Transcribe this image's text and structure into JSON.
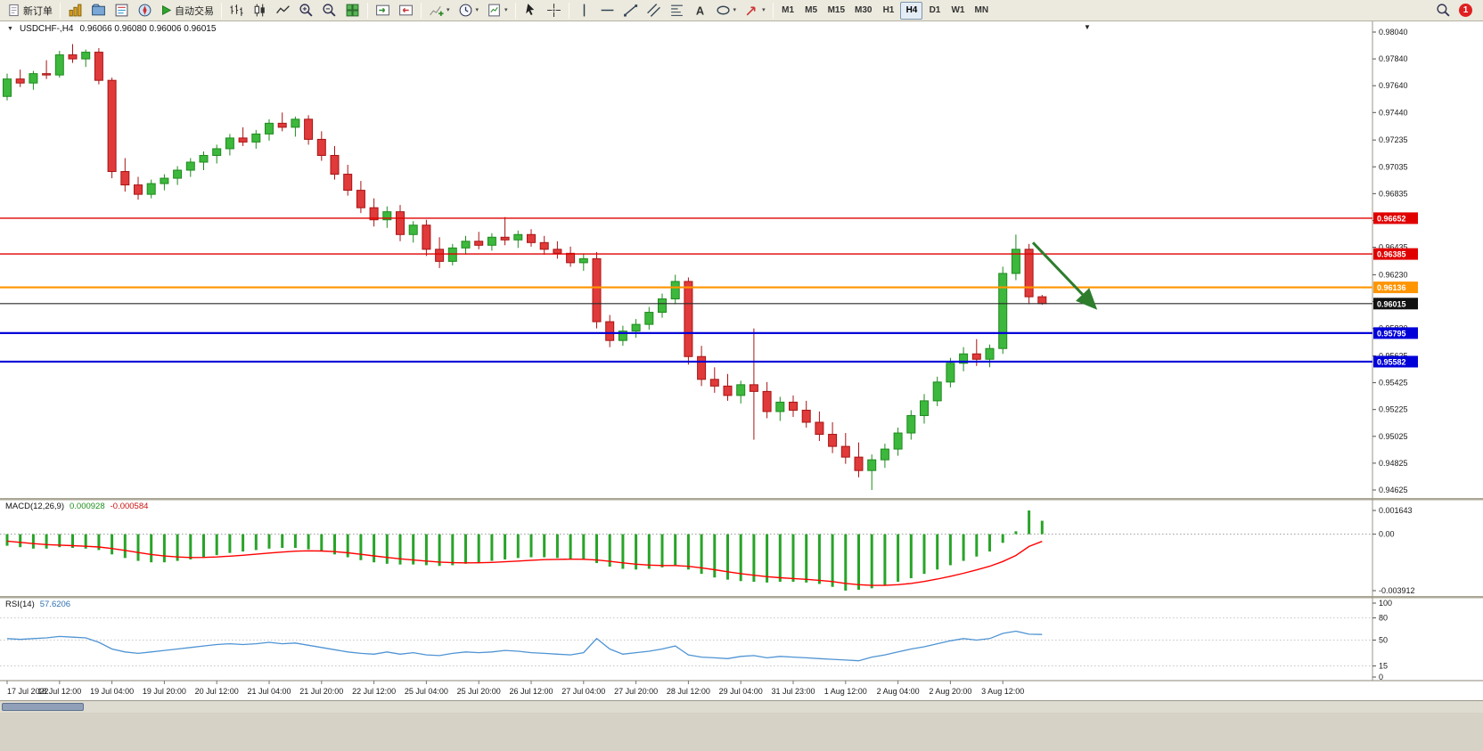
{
  "toolbar": {
    "new_order_label": "新订单",
    "auto_trading_label": "自动交易",
    "timeframes": [
      "M1",
      "M5",
      "M15",
      "M30",
      "H1",
      "H4",
      "D1",
      "W1",
      "MN"
    ],
    "active_timeframe": "H4",
    "notification_count": "1",
    "icon_names": [
      "new-order-icon",
      "new-chart-icon",
      "profiles-icon",
      "market-watch-icon",
      "navigator-icon",
      "auto-trading-icon",
      "bars-chart-icon",
      "candlestick-chart-icon",
      "line-chart-icon",
      "zoom-in-icon",
      "zoom-out-icon",
      "tile-windows-icon",
      "auto-scroll-icon",
      "chart-shift-icon",
      "indicators-icon",
      "periods-icon",
      "templates-icon",
      "cursor-icon",
      "crosshair-icon",
      "vertical-line-icon",
      "horizontal-line-icon",
      "trendline-icon",
      "channel-icon",
      "fibonacci-icon",
      "text-tool-icon",
      "shapes-icon",
      "arrows-icon",
      "search-icon"
    ]
  },
  "glyphs": {
    "down_triangle": "▼",
    "caret": "▾"
  },
  "window": {
    "symbol_title": "USDCHF-,H4",
    "ohlc": "0.96066 0.96080 0.96006 0.96015"
  },
  "chart_data": {
    "type": "candlestick",
    "symbol": "USDCHF-",
    "period": "H4",
    "price_range": {
      "max": 0.9804,
      "min": 0.94625
    },
    "price_axis_ticks": [
      "0.98040",
      "0.97840",
      "0.97640",
      "0.97440",
      "0.97235",
      "0.97035",
      "0.96835",
      "0.96635",
      "0.96435",
      "0.96230",
      "0.96030",
      "0.95830",
      "0.95625",
      "0.95425",
      "0.95225",
      "0.95025",
      "0.94825",
      "0.94625"
    ],
    "dates": [
      "17 Jul 2022",
      "18 Jul 12:00",
      "19 Jul 04:00",
      "19 Jul 20:00",
      "20 Jul 12:00",
      "21 Jul 04:00",
      "21 Jul 20:00",
      "22 Jul 12:00",
      "25 Jul 04:00",
      "25 Jul 20:00",
      "26 Jul 12:00",
      "27 Jul 04:00",
      "27 Jul 20:00",
      "28 Jul 12:00",
      "29 Jul 04:00",
      "31 Jul 23:00",
      "1 Aug 12:00",
      "2 Aug 04:00",
      "2 Aug 20:00",
      "3 Aug 12:00"
    ],
    "candles": [
      [
        0.9756,
        0.9773,
        0.9753,
        0.9769
      ],
      [
        0.9769,
        0.9776,
        0.9763,
        0.9766
      ],
      [
        0.9766,
        0.9775,
        0.9761,
        0.9773
      ],
      [
        0.9773,
        0.9783,
        0.9769,
        0.9772
      ],
      [
        0.9772,
        0.979,
        0.977,
        0.9787
      ],
      [
        0.9787,
        0.9795,
        0.9781,
        0.9784
      ],
      [
        0.9784,
        0.9791,
        0.9778,
        0.9789
      ],
      [
        0.9789,
        0.9792,
        0.9765,
        0.9768
      ],
      [
        0.9768,
        0.977,
        0.9695,
        0.97
      ],
      [
        0.97,
        0.971,
        0.9685,
        0.969
      ],
      [
        0.969,
        0.9696,
        0.9679,
        0.9683
      ],
      [
        0.9683,
        0.9694,
        0.968,
        0.9691
      ],
      [
        0.9691,
        0.9698,
        0.9686,
        0.9695
      ],
      [
        0.9695,
        0.9704,
        0.969,
        0.9701
      ],
      [
        0.9701,
        0.971,
        0.9696,
        0.9707
      ],
      [
        0.9707,
        0.9715,
        0.9701,
        0.9712
      ],
      [
        0.9712,
        0.972,
        0.9706,
        0.9717
      ],
      [
        0.9717,
        0.9728,
        0.9712,
        0.9725
      ],
      [
        0.9725,
        0.9733,
        0.9719,
        0.9722
      ],
      [
        0.9722,
        0.9731,
        0.9717,
        0.9728
      ],
      [
        0.9728,
        0.9739,
        0.9723,
        0.9736
      ],
      [
        0.9736,
        0.9744,
        0.973,
        0.9733
      ],
      [
        0.9733,
        0.9741,
        0.9726,
        0.9739
      ],
      [
        0.9739,
        0.9742,
        0.972,
        0.9724
      ],
      [
        0.9724,
        0.973,
        0.9708,
        0.9712
      ],
      [
        0.9712,
        0.9719,
        0.9694,
        0.9698
      ],
      [
        0.9698,
        0.9705,
        0.9682,
        0.9686
      ],
      [
        0.9686,
        0.9693,
        0.9669,
        0.9673
      ],
      [
        0.9673,
        0.968,
        0.9659,
        0.9664
      ],
      [
        0.9664,
        0.9674,
        0.9658,
        0.967
      ],
      [
        0.967,
        0.9675,
        0.9648,
        0.9653
      ],
      [
        0.9653,
        0.9663,
        0.9647,
        0.966
      ],
      [
        0.966,
        0.9664,
        0.9637,
        0.9642
      ],
      [
        0.9642,
        0.9651,
        0.9628,
        0.9633
      ],
      [
        0.9633,
        0.9646,
        0.963,
        0.9643
      ],
      [
        0.9643,
        0.9652,
        0.9638,
        0.9648
      ],
      [
        0.9648,
        0.9655,
        0.9642,
        0.9645
      ],
      [
        0.9645,
        0.9654,
        0.9641,
        0.9651
      ],
      [
        0.9651,
        0.9666,
        0.9645,
        0.9649
      ],
      [
        0.9649,
        0.9656,
        0.9643,
        0.9653
      ],
      [
        0.9653,
        0.9657,
        0.9644,
        0.9647
      ],
      [
        0.9647,
        0.9652,
        0.9638,
        0.9642
      ],
      [
        0.9642,
        0.9648,
        0.9635,
        0.9639
      ],
      [
        0.9639,
        0.9644,
        0.9629,
        0.9632
      ],
      [
        0.9632,
        0.9639,
        0.9626,
        0.9635
      ],
      [
        0.9635,
        0.964,
        0.9583,
        0.9588
      ],
      [
        0.9588,
        0.9593,
        0.9569,
        0.9574
      ],
      [
        0.9574,
        0.9585,
        0.957,
        0.9581
      ],
      [
        0.9581,
        0.959,
        0.9576,
        0.9586
      ],
      [
        0.9586,
        0.9599,
        0.9582,
        0.9595
      ],
      [
        0.9595,
        0.9609,
        0.9591,
        0.9605
      ],
      [
        0.9605,
        0.9623,
        0.9601,
        0.9618
      ],
      [
        0.9618,
        0.9621,
        0.9556,
        0.9562
      ],
      [
        0.9562,
        0.957,
        0.954,
        0.9545
      ],
      [
        0.9545,
        0.9554,
        0.9535,
        0.954
      ],
      [
        0.954,
        0.9549,
        0.9529,
        0.9533
      ],
      [
        0.9533,
        0.9544,
        0.9527,
        0.9541
      ],
      [
        0.9541,
        0.9583,
        0.95,
        0.9536
      ],
      [
        0.9536,
        0.9543,
        0.9516,
        0.9521
      ],
      [
        0.9521,
        0.9532,
        0.9514,
        0.9528
      ],
      [
        0.9528,
        0.9533,
        0.9517,
        0.9522
      ],
      [
        0.9522,
        0.9529,
        0.9509,
        0.9513
      ],
      [
        0.9513,
        0.9521,
        0.9499,
        0.9504
      ],
      [
        0.9504,
        0.9513,
        0.949,
        0.9495
      ],
      [
        0.9495,
        0.9505,
        0.9482,
        0.9487
      ],
      [
        0.9487,
        0.9498,
        0.9472,
        0.9477
      ],
      [
        0.9477,
        0.9489,
        0.94625,
        0.9485
      ],
      [
        0.9485,
        0.9497,
        0.9479,
        0.9493
      ],
      [
        0.9493,
        0.9509,
        0.9488,
        0.9505
      ],
      [
        0.9505,
        0.9522,
        0.95,
        0.9518
      ],
      [
        0.9518,
        0.9534,
        0.9512,
        0.9529
      ],
      [
        0.9529,
        0.9547,
        0.9525,
        0.9543
      ],
      [
        0.9543,
        0.9561,
        0.9539,
        0.9557
      ],
      [
        0.9557,
        0.9569,
        0.9551,
        0.9564
      ],
      [
        0.9564,
        0.9575,
        0.9555,
        0.956
      ],
      [
        0.956,
        0.9571,
        0.9554,
        0.9568
      ],
      [
        0.9568,
        0.9629,
        0.9564,
        0.9624
      ],
      [
        0.9624,
        0.9653,
        0.9619,
        0.9642
      ],
      [
        0.9642,
        0.9646,
        0.9601,
        0.96066
      ],
      [
        0.96066,
        0.9608,
        0.96006,
        0.96015
      ]
    ],
    "hlines": [
      {
        "price": 0.96652,
        "label": "0.96652",
        "color": "#e00000",
        "width": 1.4
      },
      {
        "price": 0.96385,
        "label": "0.96385",
        "color": "#e00000",
        "width": 1.4
      },
      {
        "price": 0.96136,
        "label": "0.96136",
        "color": "#ff9500",
        "width": 2.2
      },
      {
        "price": 0.96015,
        "label": "0.96015",
        "color": "#2a2a2a",
        "width": 1.2,
        "box": "#111111"
      },
      {
        "price": 0.95795,
        "label": "0.95795",
        "color": "#0000d8",
        "width": 2.2
      },
      {
        "price": 0.95582,
        "label": "0.95582",
        "color": "#0000d8",
        "width": 2.2
      }
    ],
    "trend_arrow": {
      "from_index": 78.3,
      "from_price": 0.9647,
      "to_index": 83,
      "to_price": 0.9599,
      "color": "#2d7d2d"
    },
    "colors": {
      "up_fill": "#3cb83c",
      "up_stroke": "#1f8a1f",
      "down_fill": "#e03a3a",
      "down_stroke": "#a81414",
      "macd_bar": "#28a428",
      "macd_signal": "#ff0000",
      "rsi_line": "#4f94d4"
    },
    "macd": {
      "label": "MACD(12,26,9)",
      "main_value": "0.000928",
      "signal_value": "-0.000584",
      "max": 0.001643,
      "min": -0.003912,
      "axis": [
        "0.001643",
        "0.00",
        "-0.003912"
      ],
      "values": [
        -0.0008,
        -0.0009,
        -0.001,
        -0.001,
        -0.0009,
        -0.00095,
        -0.001,
        -0.0011,
        -0.0014,
        -0.00165,
        -0.00185,
        -0.00195,
        -0.00195,
        -0.00185,
        -0.00175,
        -0.0016,
        -0.00145,
        -0.0013,
        -0.0012,
        -0.0011,
        -0.001,
        -0.00095,
        -0.00095,
        -0.00105,
        -0.0012,
        -0.0014,
        -0.0016,
        -0.0018,
        -0.00195,
        -0.00205,
        -0.0021,
        -0.0021,
        -0.00215,
        -0.0022,
        -0.00215,
        -0.00205,
        -0.00195,
        -0.00185,
        -0.00175,
        -0.00165,
        -0.0016,
        -0.0016,
        -0.00165,
        -0.0017,
        -0.00175,
        -0.002,
        -0.00225,
        -0.0024,
        -0.00245,
        -0.0024,
        -0.0023,
        -0.00215,
        -0.00245,
        -0.00275,
        -0.003,
        -0.00315,
        -0.00325,
        -0.0033,
        -0.00335,
        -0.0033,
        -0.0033,
        -0.00335,
        -0.00345,
        -0.00365,
        -0.00391,
        -0.00385,
        -0.00375,
        -0.00355,
        -0.0033,
        -0.00305,
        -0.00275,
        -0.00245,
        -0.00215,
        -0.00185,
        -0.00155,
        -0.0012,
        -0.0006,
        0.0002,
        0.00164,
        0.00093
      ]
    },
    "rsi": {
      "label": "RSI(14)",
      "value": "57.6206",
      "axis": [
        "100",
        "80",
        "50",
        "15",
        "0"
      ],
      "levels": [
        80,
        50,
        15
      ],
      "values": [
        52,
        51,
        52,
        53,
        55,
        54,
        53,
        47,
        38,
        34,
        32,
        34,
        36,
        38,
        40,
        42,
        44,
        45,
        44,
        45,
        47,
        45,
        46,
        43,
        40,
        37,
        34,
        32,
        31,
        34,
        31,
        33,
        30,
        29,
        32,
        34,
        33,
        34,
        36,
        35,
        33,
        32,
        31,
        30,
        33,
        52,
        38,
        31,
        33,
        35,
        38,
        42,
        30,
        27,
        26,
        25,
        28,
        29,
        26,
        28,
        27,
        26,
        25,
        24,
        23,
        22,
        27,
        30,
        34,
        38,
        41,
        45,
        49,
        52,
        50,
        52,
        59,
        62,
        58,
        57.6
      ]
    }
  }
}
